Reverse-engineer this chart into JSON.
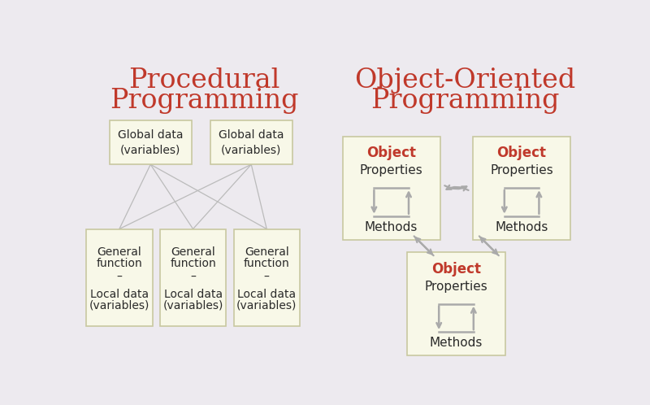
{
  "bg_color": "#edeaef",
  "box_fill": "#f8f8e8",
  "box_edge": "#c8c8a0",
  "title_color": "#c0392b",
  "text_color": "#2a2a2a",
  "arrow_color": "#aaaaaa",
  "line_color": "#bbbbbb",
  "proc_title_line1": "Procedural",
  "proc_title_line2": "Programming",
  "oop_title_line1": "Object-Oriented",
  "oop_title_line2": "Programming",
  "global_label": "Global data\n(variables)",
  "func_label_line1": "General",
  "func_label_line2": "function",
  "func_label_sep": "–",
  "func_label_line3": "Local data",
  "func_label_line4": "(variables)",
  "object_title": "Object",
  "object_prop": "Properties",
  "object_meth": "Methods"
}
